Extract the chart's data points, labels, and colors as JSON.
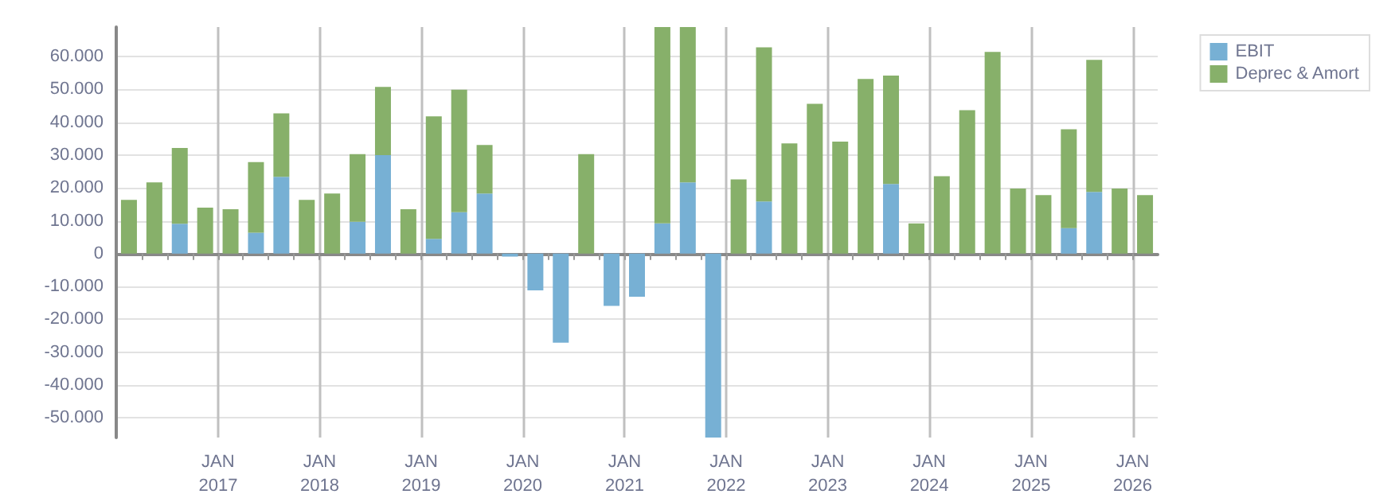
{
  "chart_data": {
    "type": "bar",
    "stacked": true,
    "x": [
      "2016-02-15",
      "2016-05-15",
      "2016-08-15",
      "2016-11-15",
      "2017-02-15",
      "2017-05-15",
      "2017-08-15",
      "2017-11-15",
      "2018-02-15",
      "2018-05-15",
      "2018-08-15",
      "2018-11-15",
      "2019-02-15",
      "2019-05-15",
      "2019-08-15",
      "2019-11-15",
      "2020-02-15",
      "2020-05-15",
      "2020-08-15",
      "2020-11-15",
      "2021-02-15",
      "2021-05-15",
      "2021-08-15",
      "2021-11-15",
      "2022-02-15",
      "2022-05-15",
      "2022-08-15",
      "2022-11-15",
      "2023-02-15",
      "2023-05-15",
      "2023-08-15",
      "2023-11-15",
      "2024-02-15",
      "2024-05-15",
      "2024-08-15",
      "2024-11-15",
      "2025-02-15",
      "2025-05-15",
      "2025-08-15",
      "2025-11-15",
      "2026-02-15"
    ],
    "series": [
      {
        "name": "EBIT",
        "color": "#77b0d4",
        "values": [
          0,
          0,
          9100,
          0,
          0,
          6400,
          23400,
          0,
          0,
          9700,
          30000,
          0,
          4500,
          12600,
          18300,
          -900,
          -11200,
          -27100,
          0,
          -15900,
          -13100,
          9200,
          21700,
          -56000,
          0,
          15900,
          0,
          0,
          0,
          0,
          21200,
          0,
          0,
          0,
          0,
          0,
          0,
          7800,
          18800,
          0,
          0
        ]
      },
      {
        "name": "Deprec & Amort",
        "color": "#87b06a",
        "values": [
          16400,
          21700,
          23100,
          14000,
          13500,
          21500,
          19300,
          16400,
          18300,
          20600,
          20800,
          13500,
          37300,
          37300,
          14800,
          0,
          0,
          0,
          30300,
          0,
          0,
          59800,
          47300,
          0,
          22600,
          46900,
          33600,
          45600,
          34100,
          53200,
          33000,
          9200,
          23600,
          43700,
          61400,
          19800,
          17800,
          30100,
          40200,
          19800,
          17800
        ]
      }
    ],
    "xlim": [
      "2016-01-01",
      "2026-04-01"
    ],
    "xticks": [
      {
        "value": "2016-04-01",
        "label": null
      },
      {
        "value": "2016-07-01",
        "label": null
      },
      {
        "value": "2016-10-01",
        "label": null
      },
      {
        "value": "2017-01-01",
        "label": "JAN 2017"
      },
      {
        "value": "2017-04-01",
        "label": null
      },
      {
        "value": "2017-07-01",
        "label": null
      },
      {
        "value": "2017-10-01",
        "label": null
      },
      {
        "value": "2018-01-01",
        "label": "JAN 2018"
      },
      {
        "value": "2018-04-01",
        "label": null
      },
      {
        "value": "2018-07-01",
        "label": null
      },
      {
        "value": "2018-10-01",
        "label": null
      },
      {
        "value": "2019-01-01",
        "label": "JAN 2019"
      },
      {
        "value": "2019-04-01",
        "label": null
      },
      {
        "value": "2019-07-01",
        "label": null
      },
      {
        "value": "2019-10-01",
        "label": null
      },
      {
        "value": "2020-01-01",
        "label": "JAN 2020"
      },
      {
        "value": "2020-04-01",
        "label": null
      },
      {
        "value": "2020-07-01",
        "label": null
      },
      {
        "value": "2020-10-01",
        "label": null
      },
      {
        "value": "2021-01-01",
        "label": "JAN 2021"
      },
      {
        "value": "2021-04-01",
        "label": null
      },
      {
        "value": "2021-07-01",
        "label": null
      },
      {
        "value": "2021-10-01",
        "label": null
      },
      {
        "value": "2022-01-01",
        "label": "JAN 2022"
      },
      {
        "value": "2022-04-01",
        "label": null
      },
      {
        "value": "2022-07-01",
        "label": null
      },
      {
        "value": "2022-10-01",
        "label": null
      },
      {
        "value": "2023-01-01",
        "label": "JAN 2023"
      },
      {
        "value": "2023-04-01",
        "label": null
      },
      {
        "value": "2023-07-01",
        "label": null
      },
      {
        "value": "2023-10-01",
        "label": null
      },
      {
        "value": "2024-01-01",
        "label": "JAN 2024"
      },
      {
        "value": "2024-04-01",
        "label": null
      },
      {
        "value": "2024-07-01",
        "label": null
      },
      {
        "value": "2024-10-01",
        "label": null
      },
      {
        "value": "2025-01-01",
        "label": "JAN 2025"
      },
      {
        "value": "2025-04-01",
        "label": null
      },
      {
        "value": "2025-07-01",
        "label": null
      },
      {
        "value": "2025-10-01",
        "label": null
      },
      {
        "value": "2026-01-01",
        "label": "JAN 2026"
      }
    ],
    "ylim": [
      -56000,
      69000
    ],
    "yticks": [
      {
        "value": -50000,
        "label": "-50.000"
      },
      {
        "value": -40000,
        "label": "-40.000"
      },
      {
        "value": -30000,
        "label": "-30.000"
      },
      {
        "value": -20000,
        "label": "-20.000"
      },
      {
        "value": -10000,
        "label": "-10.000"
      },
      0,
      {
        "value": 10000,
        "label": "10.000"
      },
      {
        "value": 20000,
        "label": "20.000"
      },
      {
        "value": 30000,
        "label": "30.000"
      },
      {
        "value": 40000,
        "label": "40.000"
      },
      {
        "value": 50000,
        "label": "50.000"
      },
      {
        "value": 60000,
        "label": "60.000"
      }
    ],
    "grid": true,
    "legend": "top right"
  }
}
